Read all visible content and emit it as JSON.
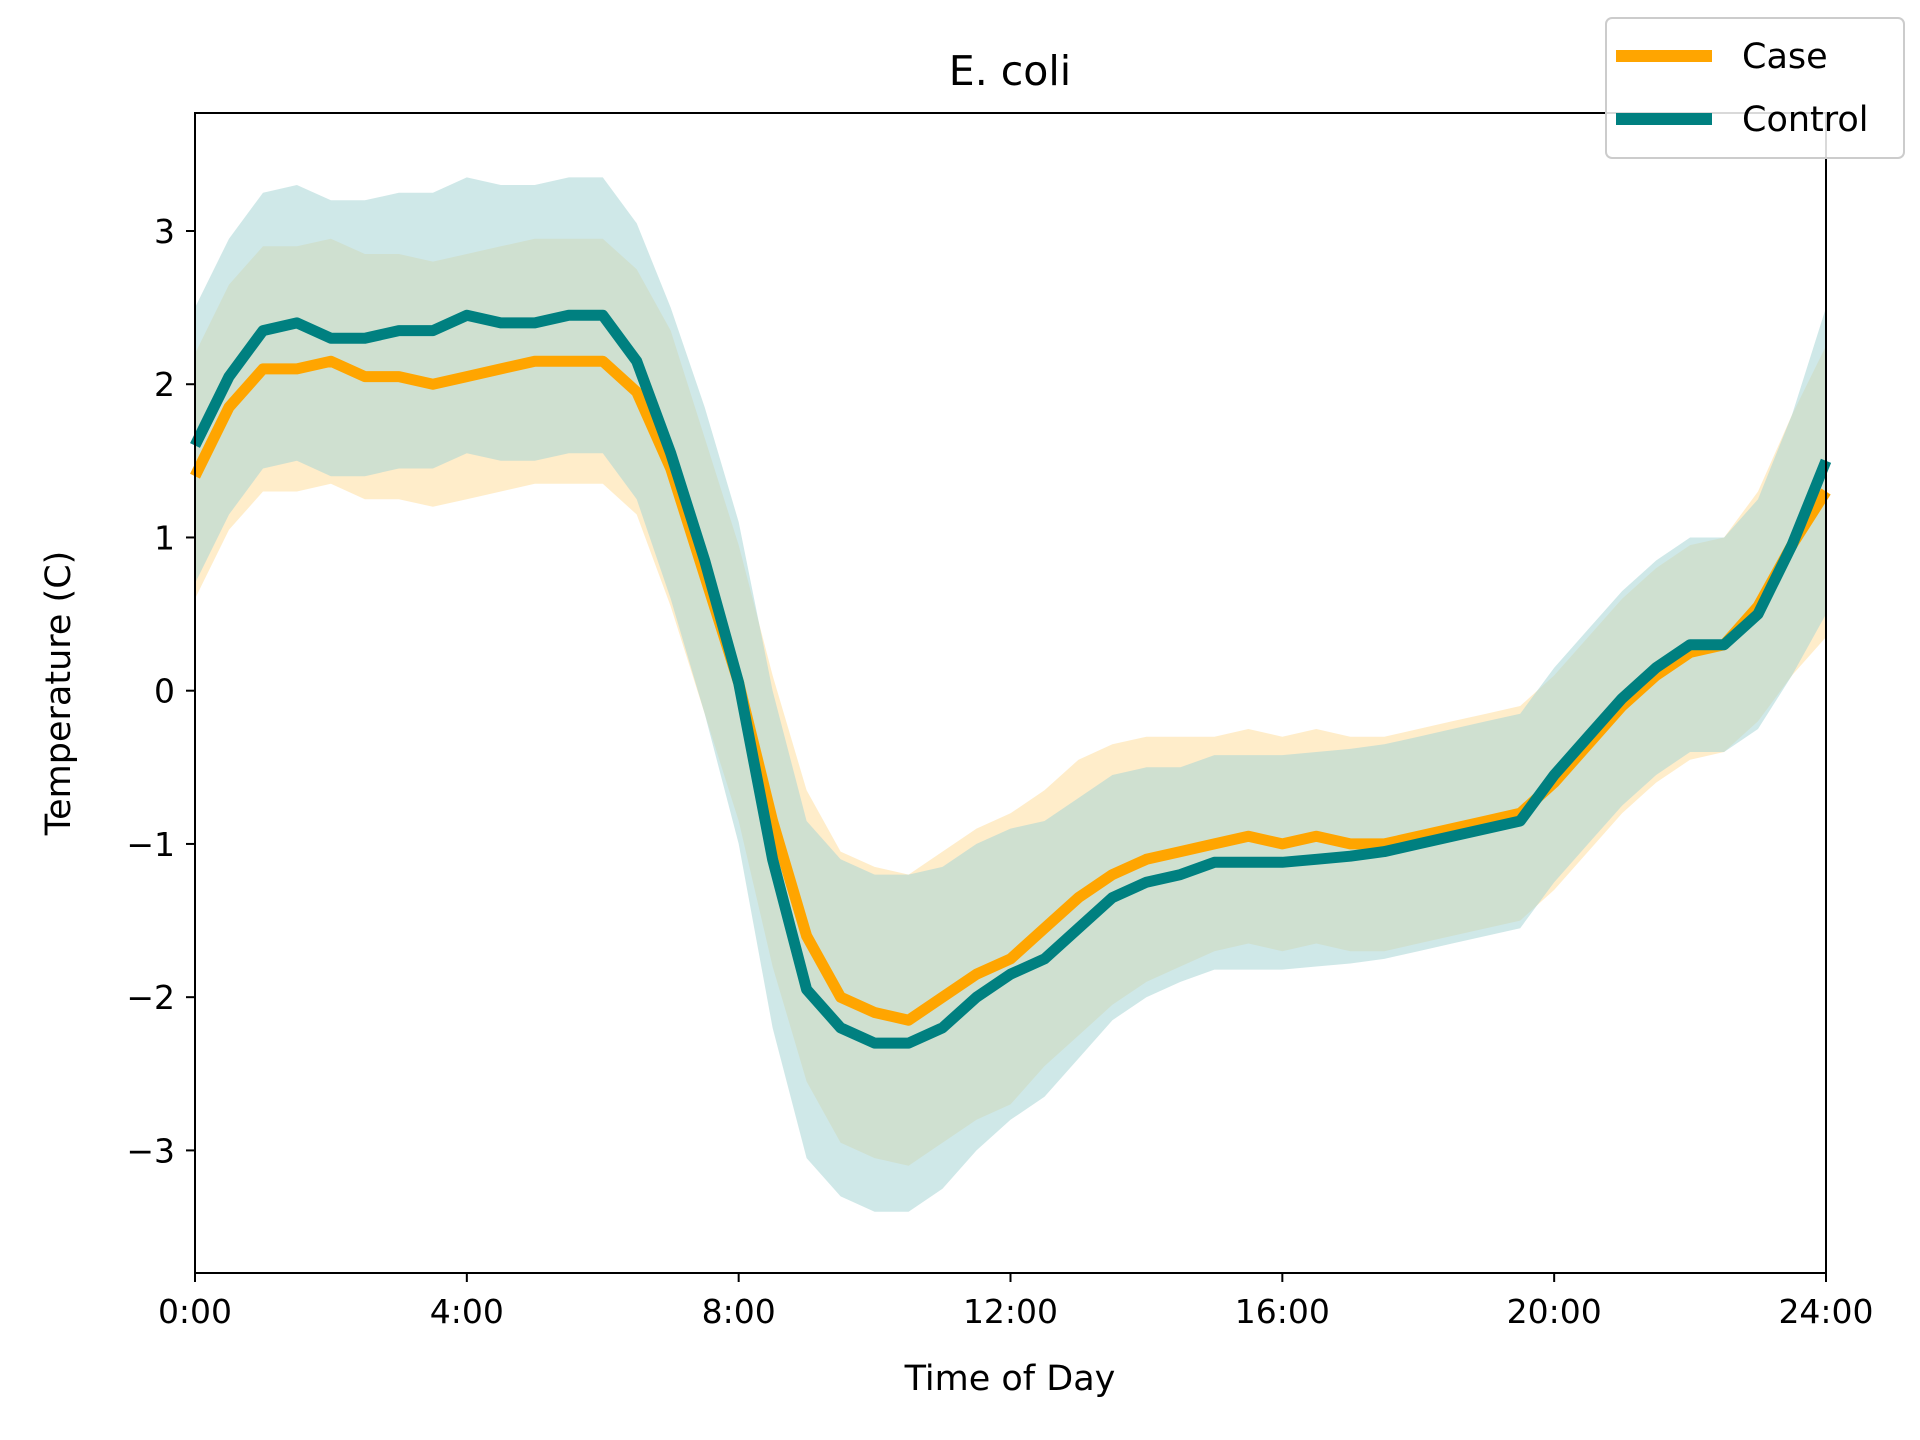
{
  "chart_data": {
    "type": "line",
    "title": "E. coli",
    "xlabel": "Time of Day",
    "ylabel": "Temperature (C)",
    "xlim": [
      0,
      24
    ],
    "ylim": [
      -3.8,
      3.77
    ],
    "xticks": [
      {
        "value": 0,
        "label": "0:00"
      },
      {
        "value": 4,
        "label": "4:00"
      },
      {
        "value": 8,
        "label": "8:00"
      },
      {
        "value": 12,
        "label": "12:00"
      },
      {
        "value": 16,
        "label": "16:00"
      },
      {
        "value": 20,
        "label": "20:00"
      },
      {
        "value": 24,
        "label": "24:00"
      }
    ],
    "yticks": [
      {
        "value": 3,
        "label": "3"
      },
      {
        "value": 2,
        "label": "2"
      },
      {
        "value": 1,
        "label": "1"
      },
      {
        "value": 0,
        "label": "0"
      },
      {
        "value": -1,
        "label": "−1"
      },
      {
        "value": -2,
        "label": "−2"
      },
      {
        "value": -3,
        "label": "−3"
      }
    ],
    "grid": false,
    "legend_position": "top-right",
    "x": [
      0,
      0.5,
      1,
      1.5,
      2,
      2.5,
      3,
      3.5,
      4,
      4.5,
      5,
      5.5,
      6,
      6.5,
      7,
      7.5,
      8,
      8.5,
      9,
      9.5,
      10,
      10.5,
      11,
      11.5,
      12,
      12.5,
      13,
      13.5,
      14,
      14.5,
      15,
      15.5,
      16,
      16.5,
      17,
      17.5,
      18,
      18.5,
      19,
      19.5,
      20,
      20.5,
      21,
      21.5,
      22,
      22.5,
      23,
      23.5,
      24
    ],
    "series": [
      {
        "name": "Case",
        "color": "#FFA500",
        "band_color": "#FFE6B3",
        "values": [
          1.4,
          1.85,
          2.1,
          2.1,
          2.15,
          2.05,
          2.05,
          2.0,
          2.05,
          2.1,
          2.15,
          2.15,
          2.15,
          1.95,
          1.45,
          0.75,
          0.05,
          -0.85,
          -1.6,
          -2.0,
          -2.1,
          -2.15,
          -2.0,
          -1.85,
          -1.75,
          -1.55,
          -1.35,
          -1.2,
          -1.1,
          -1.05,
          -1.0,
          -0.95,
          -1.0,
          -0.95,
          -1.0,
          -1.0,
          -0.95,
          -0.9,
          -0.85,
          -0.8,
          -0.6,
          -0.35,
          -0.1,
          0.1,
          0.25,
          0.3,
          0.55,
          0.95,
          1.3
        ],
        "band": [
          0.8,
          0.8,
          0.8,
          0.8,
          0.8,
          0.8,
          0.8,
          0.8,
          0.8,
          0.8,
          0.8,
          0.8,
          0.8,
          0.8,
          0.9,
          0.9,
          0.9,
          0.95,
          0.95,
          0.95,
          0.95,
          0.95,
          0.95,
          0.95,
          0.95,
          0.9,
          0.9,
          0.85,
          0.8,
          0.75,
          0.7,
          0.7,
          0.7,
          0.7,
          0.7,
          0.7,
          0.7,
          0.7,
          0.7,
          0.7,
          0.7,
          0.7,
          0.7,
          0.7,
          0.7,
          0.7,
          0.75,
          0.85,
          0.95
        ]
      },
      {
        "name": "Control",
        "color": "#008080",
        "band_color": "#A8D5D5",
        "values": [
          1.6,
          2.05,
          2.35,
          2.4,
          2.3,
          2.3,
          2.35,
          2.35,
          2.45,
          2.4,
          2.4,
          2.45,
          2.45,
          2.15,
          1.55,
          0.85,
          0.05,
          -1.1,
          -1.95,
          -2.2,
          -2.3,
          -2.3,
          -2.2,
          -2.0,
          -1.85,
          -1.75,
          -1.55,
          -1.35,
          -1.25,
          -1.2,
          -1.12,
          -1.12,
          -1.12,
          -1.1,
          -1.08,
          -1.05,
          -1.0,
          -0.95,
          -0.9,
          -0.85,
          -0.55,
          -0.3,
          -0.05,
          0.15,
          0.3,
          0.3,
          0.5,
          0.95,
          1.5
        ],
        "band": [
          0.9,
          0.9,
          0.9,
          0.9,
          0.9,
          0.9,
          0.9,
          0.9,
          0.9,
          0.9,
          0.9,
          0.9,
          0.9,
          0.9,
          0.95,
          1.0,
          1.05,
          1.1,
          1.1,
          1.1,
          1.1,
          1.1,
          1.05,
          1.0,
          0.95,
          0.9,
          0.85,
          0.8,
          0.75,
          0.7,
          0.7,
          0.7,
          0.7,
          0.7,
          0.7,
          0.7,
          0.7,
          0.7,
          0.7,
          0.7,
          0.7,
          0.7,
          0.7,
          0.7,
          0.7,
          0.7,
          0.75,
          0.85,
          1.0
        ]
      }
    ]
  }
}
